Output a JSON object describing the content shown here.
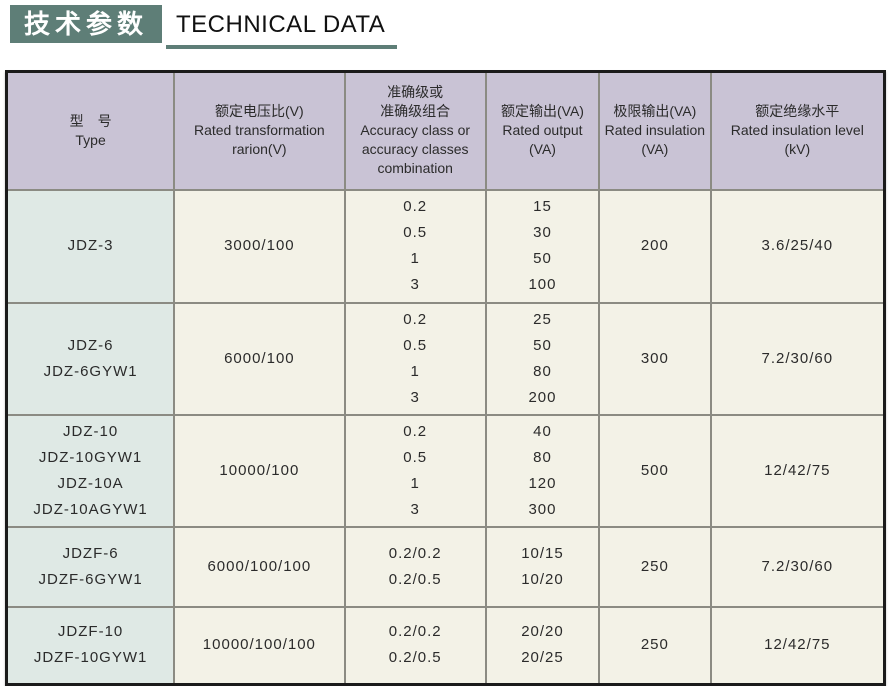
{
  "header": {
    "title_cn": "技术参数",
    "title_en": "TECHNICAL DATA"
  },
  "colors": {
    "accent_teal": "#5e7e77",
    "header_bg": "#c9c3d5",
    "type_col_bg": "#dfe9e5",
    "cell_bg": "#f3f2e7",
    "grid_line": "#8b8b83",
    "outer_border": "#1b1b1b",
    "text": "#2b2b2b"
  },
  "table": {
    "columns": [
      {
        "id": "type",
        "lines": [
          "型　号",
          "Type"
        ]
      },
      {
        "id": "ratio",
        "lines": [
          "额定电压比(V)",
          "Rated transformation",
          "rarion(V)"
        ]
      },
      {
        "id": "accuracy",
        "lines": [
          "准确级或",
          "准确级组合",
          "Accuracy class or",
          "accuracy classes",
          "combination"
        ]
      },
      {
        "id": "rated_output",
        "lines": [
          "额定输出(VA)",
          "Rated output",
          "(VA)"
        ]
      },
      {
        "id": "limit_output",
        "lines": [
          "极限输出(VA)",
          "Rated insulation",
          "(VA)"
        ]
      },
      {
        "id": "insulation_level",
        "lines": [
          "额定绝缘水平",
          "Rated insulation level",
          "(kV)"
        ]
      }
    ],
    "row_keys": [
      "type",
      "ratio",
      "accuracy",
      "rated_output",
      "limit_output",
      "insulation_level"
    ],
    "rows": [
      {
        "type": [
          "JDZ-3"
        ],
        "ratio": [
          "3000/100"
        ],
        "accuracy": [
          "0.2",
          "0.5",
          "1",
          "3"
        ],
        "rated_output": [
          "15",
          "30",
          "50",
          "100"
        ],
        "limit_output": [
          "200"
        ],
        "insulation_level": [
          "3.6/25/40"
        ]
      },
      {
        "type": [
          "JDZ-6",
          "JDZ-6GYW1"
        ],
        "ratio": [
          "6000/100"
        ],
        "accuracy": [
          "0.2",
          "0.5",
          "1",
          "3"
        ],
        "rated_output": [
          "25",
          "50",
          "80",
          "200"
        ],
        "limit_output": [
          "300"
        ],
        "insulation_level": [
          "7.2/30/60"
        ]
      },
      {
        "type": [
          "JDZ-10",
          "JDZ-10GYW1",
          "JDZ-10A",
          "JDZ-10AGYW1"
        ],
        "ratio": [
          "10000/100"
        ],
        "accuracy": [
          "0.2",
          "0.5",
          "1",
          "3"
        ],
        "rated_output": [
          "40",
          "80",
          "120",
          "300"
        ],
        "limit_output": [
          "500"
        ],
        "insulation_level": [
          "12/42/75"
        ]
      },
      {
        "type": [
          "JDZF-6",
          "JDZF-6GYW1"
        ],
        "ratio": [
          "6000/100/100"
        ],
        "accuracy": [
          "0.2/0.2",
          "0.2/0.5"
        ],
        "rated_output": [
          "10/15",
          "10/20"
        ],
        "limit_output": [
          "250"
        ],
        "insulation_level": [
          "7.2/30/60"
        ]
      },
      {
        "type": [
          "JDZF-10",
          "JDZF-10GYW1"
        ],
        "ratio": [
          "10000/100/100"
        ],
        "accuracy": [
          "0.2/0.2",
          "0.2/0.5"
        ],
        "rated_output": [
          "20/20",
          "20/25"
        ],
        "limit_output": [
          "250"
        ],
        "insulation_level": [
          "12/42/75"
        ]
      }
    ]
  }
}
